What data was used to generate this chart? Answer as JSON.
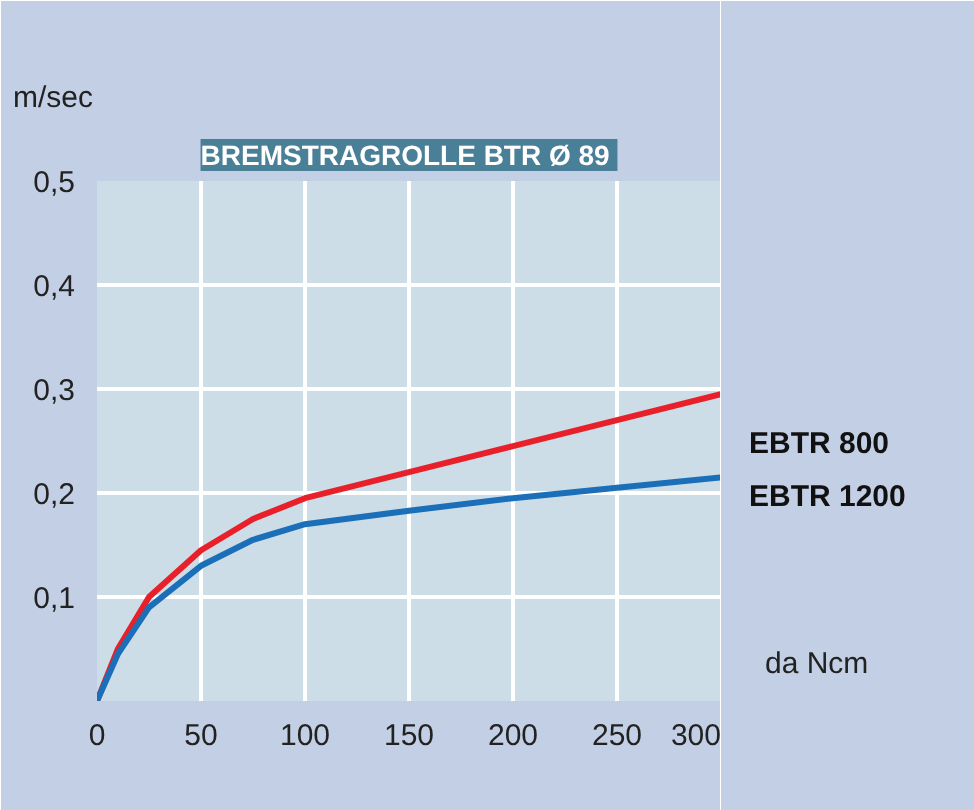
{
  "chart_data": {
    "type": "line",
    "title": "BREMSTRAGROLLE  BTR Ø 89",
    "xlabel": "da Ncm",
    "ylabel": "m/sec",
    "xlim": [
      0,
      300
    ],
    "xticks": [
      0,
      50,
      100,
      150,
      200,
      250,
      300
    ],
    "ylim": [
      0,
      0.5
    ],
    "yticks": [
      {
        "value": 0.1,
        "label": "0,1"
      },
      {
        "value": 0.2,
        "label": "0,2"
      },
      {
        "value": 0.3,
        "label": "0,3"
      },
      {
        "value": 0.4,
        "label": "0,4"
      },
      {
        "value": 0.5,
        "label": "0,5"
      }
    ],
    "grid": true,
    "series": [
      {
        "name": "EBTR 800",
        "color": "#e8202a",
        "x": [
          0,
          10,
          25,
          50,
          75,
          100,
          150,
          200,
          250,
          300
        ],
        "values": [
          0,
          0.05,
          0.1,
          0.145,
          0.175,
          0.195,
          0.22,
          0.245,
          0.27,
          0.295
        ]
      },
      {
        "name": "EBTR 1200",
        "color": "#1a6fb8",
        "x": [
          0,
          10,
          25,
          50,
          75,
          100,
          150,
          200,
          250,
          300
        ],
        "values": [
          0,
          0.045,
          0.09,
          0.13,
          0.155,
          0.17,
          0.183,
          0.195,
          0.205,
          0.215
        ]
      }
    ]
  }
}
